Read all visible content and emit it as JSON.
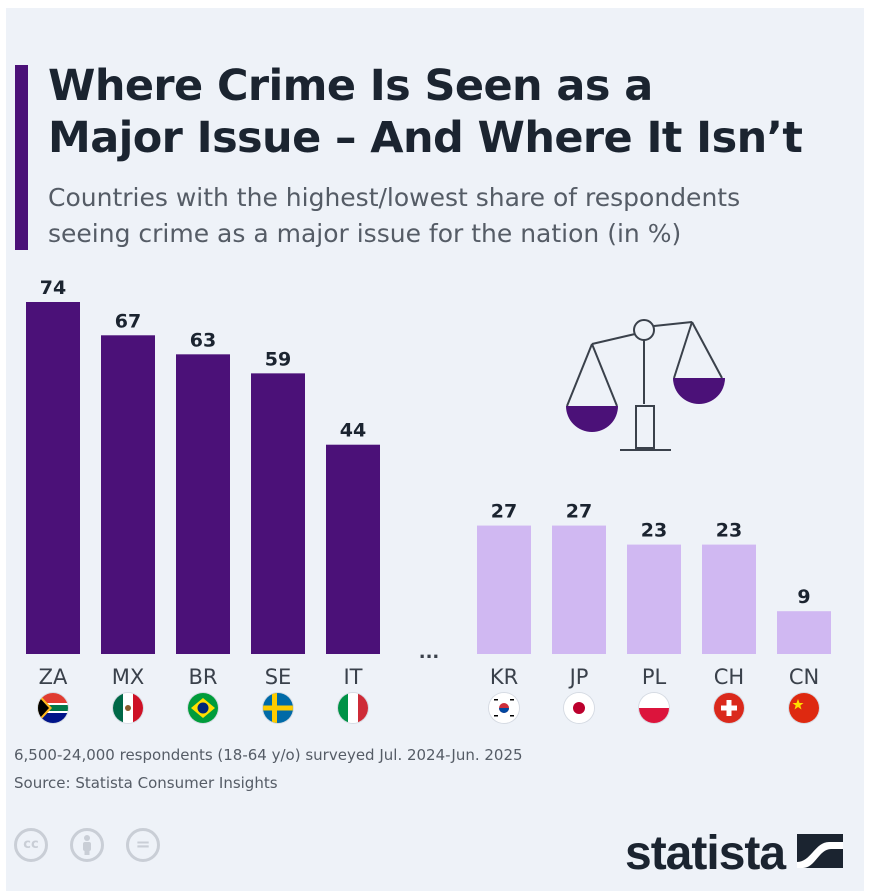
{
  "header": {
    "title": "Where Crime Is Seen as a\nMajor Issue – And Where It Isn’t",
    "subtitle": "Countries with the highest/lowest share of respondents\nseeing crime as a major issue for the nation (in %)"
  },
  "colors": {
    "accent": "#4b1178",
    "high_bar": "#4b1178",
    "low_bar": "#d0b8f2",
    "background": "#eef2f8",
    "text": "#1b2430"
  },
  "chart_data": {
    "type": "bar",
    "categories": [
      "ZA",
      "MX",
      "BR",
      "SE",
      "IT",
      "KR",
      "JP",
      "PL",
      "CH",
      "CN"
    ],
    "values": [
      74,
      67,
      63,
      59,
      44,
      27,
      27,
      23,
      23,
      9
    ],
    "groups": [
      "highest",
      "highest",
      "highest",
      "highest",
      "highest",
      "lowest",
      "lowest",
      "lowest",
      "lowest",
      "lowest"
    ],
    "gap_label": "...",
    "ylim": [
      0,
      74
    ],
    "data_labels": true,
    "grid": false
  },
  "flags": [
    "flag-south-africa-icon",
    "flag-mexico-icon",
    "flag-brazil-icon",
    "flag-sweden-icon",
    "flag-italy-icon",
    "flag-south-korea-icon",
    "flag-japan-icon",
    "flag-poland-icon",
    "flag-switzerland-icon",
    "flag-china-icon"
  ],
  "illustration": "scales-of-justice-icon",
  "footer": {
    "note": "6,500-24,000 respondents (18-64 y/o) surveyed Jul. 2024-Jun. 2025",
    "source": "Source: Statista Consumer Insights",
    "license_icons": [
      "cc-icon",
      "attribution-icon",
      "no-derivatives-icon"
    ],
    "cc_text": "cc",
    "no_derivatives_text": "=",
    "brand": "statista"
  }
}
